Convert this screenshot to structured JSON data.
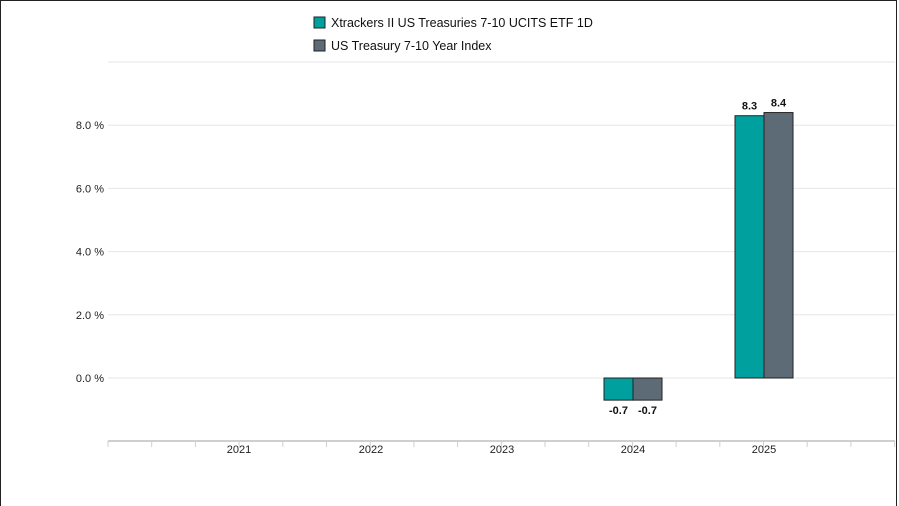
{
  "chart_data": {
    "type": "bar",
    "categories": [
      "2021",
      "2022",
      "2023",
      "2024",
      "2025"
    ],
    "series": [
      {
        "name": "Xtrackers II US Treasuries 7-10 UCITS ETF 1D",
        "color": "#00a09e",
        "values": [
          null,
          null,
          null,
          -0.7,
          8.3
        ]
      },
      {
        "name": "US Treasury 7-10 Year Index",
        "color": "#5d6b76",
        "values": [
          null,
          null,
          null,
          -0.7,
          8.4
        ]
      }
    ],
    "y_ticks": [
      {
        "value": 0,
        "label": "0.0 %"
      },
      {
        "value": 2,
        "label": "2.0 %"
      },
      {
        "value": 4,
        "label": "4.0 %"
      },
      {
        "value": 6,
        "label": "6.0 %"
      },
      {
        "value": 8,
        "label": "8.0 %"
      }
    ],
    "ylim": [
      -2,
      10
    ],
    "grid": true,
    "legend_position": "top-center",
    "title": "",
    "xlabel": "",
    "ylabel": ""
  }
}
